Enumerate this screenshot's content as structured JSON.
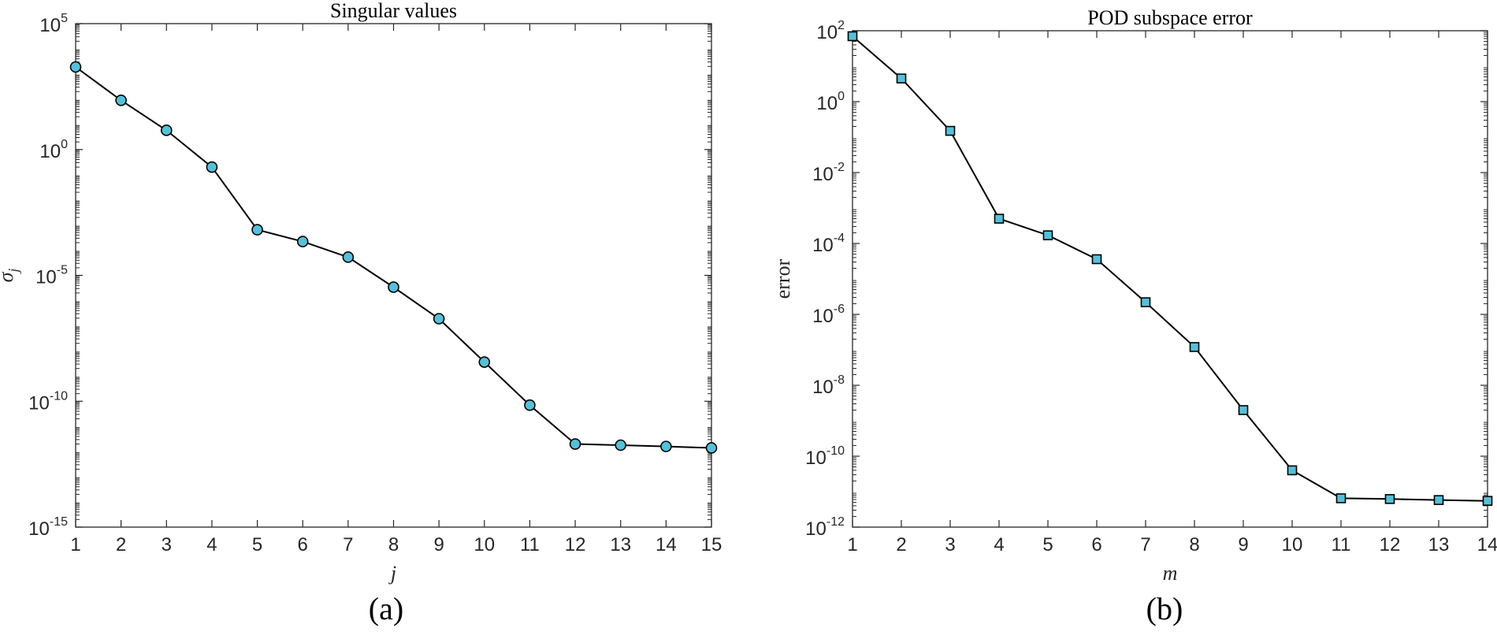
{
  "chart_data": [
    {
      "type": "line",
      "title": "Singular values",
      "caption": "(a)",
      "xlabel": "j",
      "ylabel": "σj",
      "ylabel_symbol": "σ",
      "ylabel_subscript": "j",
      "yscale": "log",
      "xlim": [
        1,
        15
      ],
      "ylim": [
        1e-15,
        100000.0
      ],
      "x_ticks": [
        1,
        2,
        3,
        4,
        5,
        6,
        7,
        8,
        9,
        10,
        11,
        12,
        13,
        14,
        15
      ],
      "y_ticks": [
        {
          "value": 100000.0,
          "base": "10",
          "exp": "5"
        },
        {
          "value": 1.0,
          "base": "10",
          "exp": "0"
        },
        {
          "value": 1e-05,
          "base": "10",
          "exp": "-5"
        },
        {
          "value": 1e-10,
          "base": "10",
          "exp": "-10"
        },
        {
          "value": 1e-15,
          "base": "10",
          "exp": "-15"
        }
      ],
      "grid": false,
      "marker": "circle",
      "marker_color": "#56c0d8",
      "line_color": "#000000",
      "x": [
        1,
        2,
        3,
        4,
        5,
        6,
        7,
        8,
        9,
        10,
        11,
        12,
        13,
        14,
        15
      ],
      "values": [
        1900,
        90,
        5.8,
        0.2,
        0.00065,
        0.00022,
        5.3e-05,
        3.4e-06,
        1.9e-07,
        3.6e-09,
        7e-11,
        2e-12,
        1.8e-12,
        1.6e-12,
        1.4e-12
      ]
    },
    {
      "type": "line",
      "title": "POD subspace error",
      "caption": "(b)",
      "xlabel": "m",
      "ylabel": "error",
      "yscale": "log",
      "xlim": [
        1,
        14
      ],
      "ylim": [
        1e-12,
        100.0
      ],
      "x_ticks": [
        1,
        2,
        3,
        4,
        5,
        6,
        7,
        8,
        9,
        10,
        11,
        12,
        13,
        14
      ],
      "y_ticks": [
        {
          "value": 100.0,
          "base": "10",
          "exp": "2"
        },
        {
          "value": 1.0,
          "base": "10",
          "exp": "0"
        },
        {
          "value": 0.01,
          "base": "10",
          "exp": "-2"
        },
        {
          "value": 0.0001,
          "base": "10",
          "exp": "-4"
        },
        {
          "value": 1e-06,
          "base": "10",
          "exp": "-6"
        },
        {
          "value": 1e-08,
          "base": "10",
          "exp": "-8"
        },
        {
          "value": 1e-10,
          "base": "10",
          "exp": "-10"
        },
        {
          "value": 1e-12,
          "base": "10",
          "exp": "-12"
        }
      ],
      "grid": false,
      "marker": "square",
      "marker_color": "#56c0d8",
      "line_color": "#000000",
      "x": [
        1,
        2,
        3,
        4,
        5,
        6,
        7,
        8,
        9,
        10,
        11,
        12,
        13,
        14
      ],
      "values": [
        70,
        4.5,
        0.15,
        0.0005,
        0.00017,
        3.6e-05,
        2.2e-06,
        1.2e-07,
        2e-09,
        4e-11,
        6.5e-12,
        6.2e-12,
        5.8e-12,
        5.5e-12
      ]
    }
  ]
}
